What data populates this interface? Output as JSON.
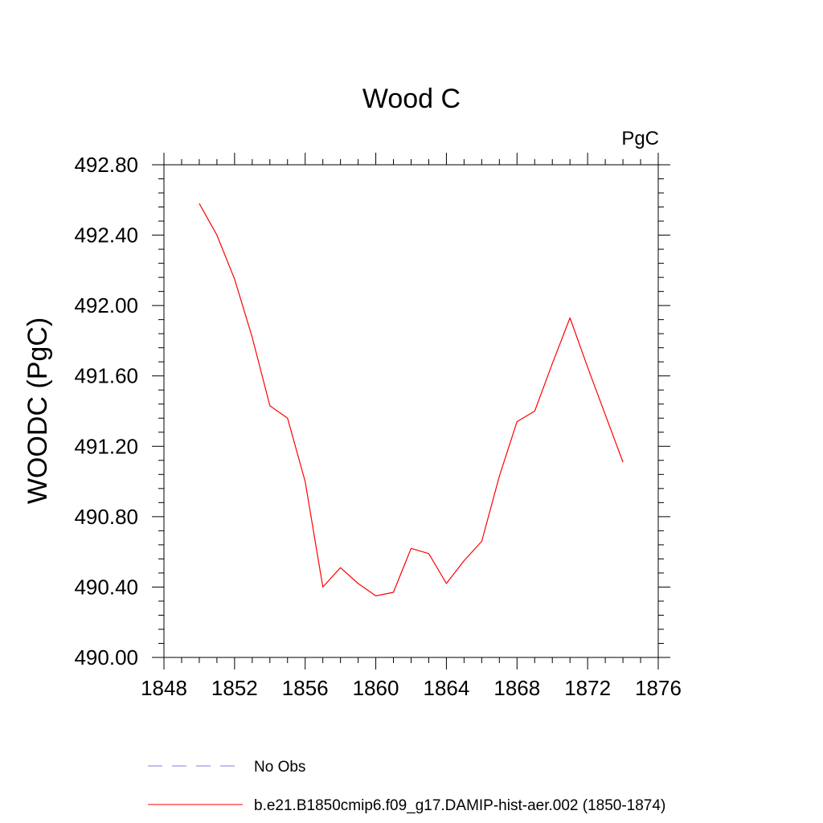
{
  "chart_data": {
    "type": "line",
    "title": "Wood C",
    "units_label": "PgC",
    "ylabel": "WOODC  (PgC)",
    "xlabel": "",
    "xlim": [
      1848,
      1876
    ],
    "ylim": [
      490.0,
      492.8
    ],
    "x_ticks": [
      "1848",
      "1852",
      "1856",
      "1860",
      "1864",
      "1868",
      "1872",
      "1876"
    ],
    "y_ticks": [
      "490.00",
      "490.40",
      "490.80",
      "491.20",
      "491.60",
      "492.00",
      "492.40",
      "492.80"
    ],
    "series": [
      {
        "name": "b.e21.B1850cmip6.f09_g17.DAMIP-hist-aer.002 (1850-1874)",
        "color": "#ff0000",
        "x": [
          1850,
          1851,
          1852,
          1853,
          1854,
          1855,
          1856,
          1857,
          1858,
          1859,
          1860,
          1861,
          1862,
          1863,
          1864,
          1865,
          1866,
          1867,
          1868,
          1869,
          1870,
          1871,
          1872,
          1873,
          1874
        ],
        "y": [
          492.58,
          492.4,
          492.15,
          491.82,
          491.43,
          491.36,
          491.0,
          490.4,
          490.51,
          490.42,
          490.35,
          490.37,
          490.62,
          490.59,
          490.42,
          490.55,
          490.66,
          491.03,
          491.34,
          491.4,
          491.67,
          491.93,
          491.65,
          491.38,
          491.11
        ]
      }
    ],
    "legend": [
      {
        "label": "No Obs",
        "color": "#7f7fdd",
        "style": "dashed"
      },
      {
        "label": "b.e21.B1850cmip6.f09_g17.DAMIP-hist-aer.002 (1850-1874)",
        "color": "#ff0000",
        "style": "solid"
      }
    ],
    "grid": false,
    "legend_placement": "bottom"
  }
}
